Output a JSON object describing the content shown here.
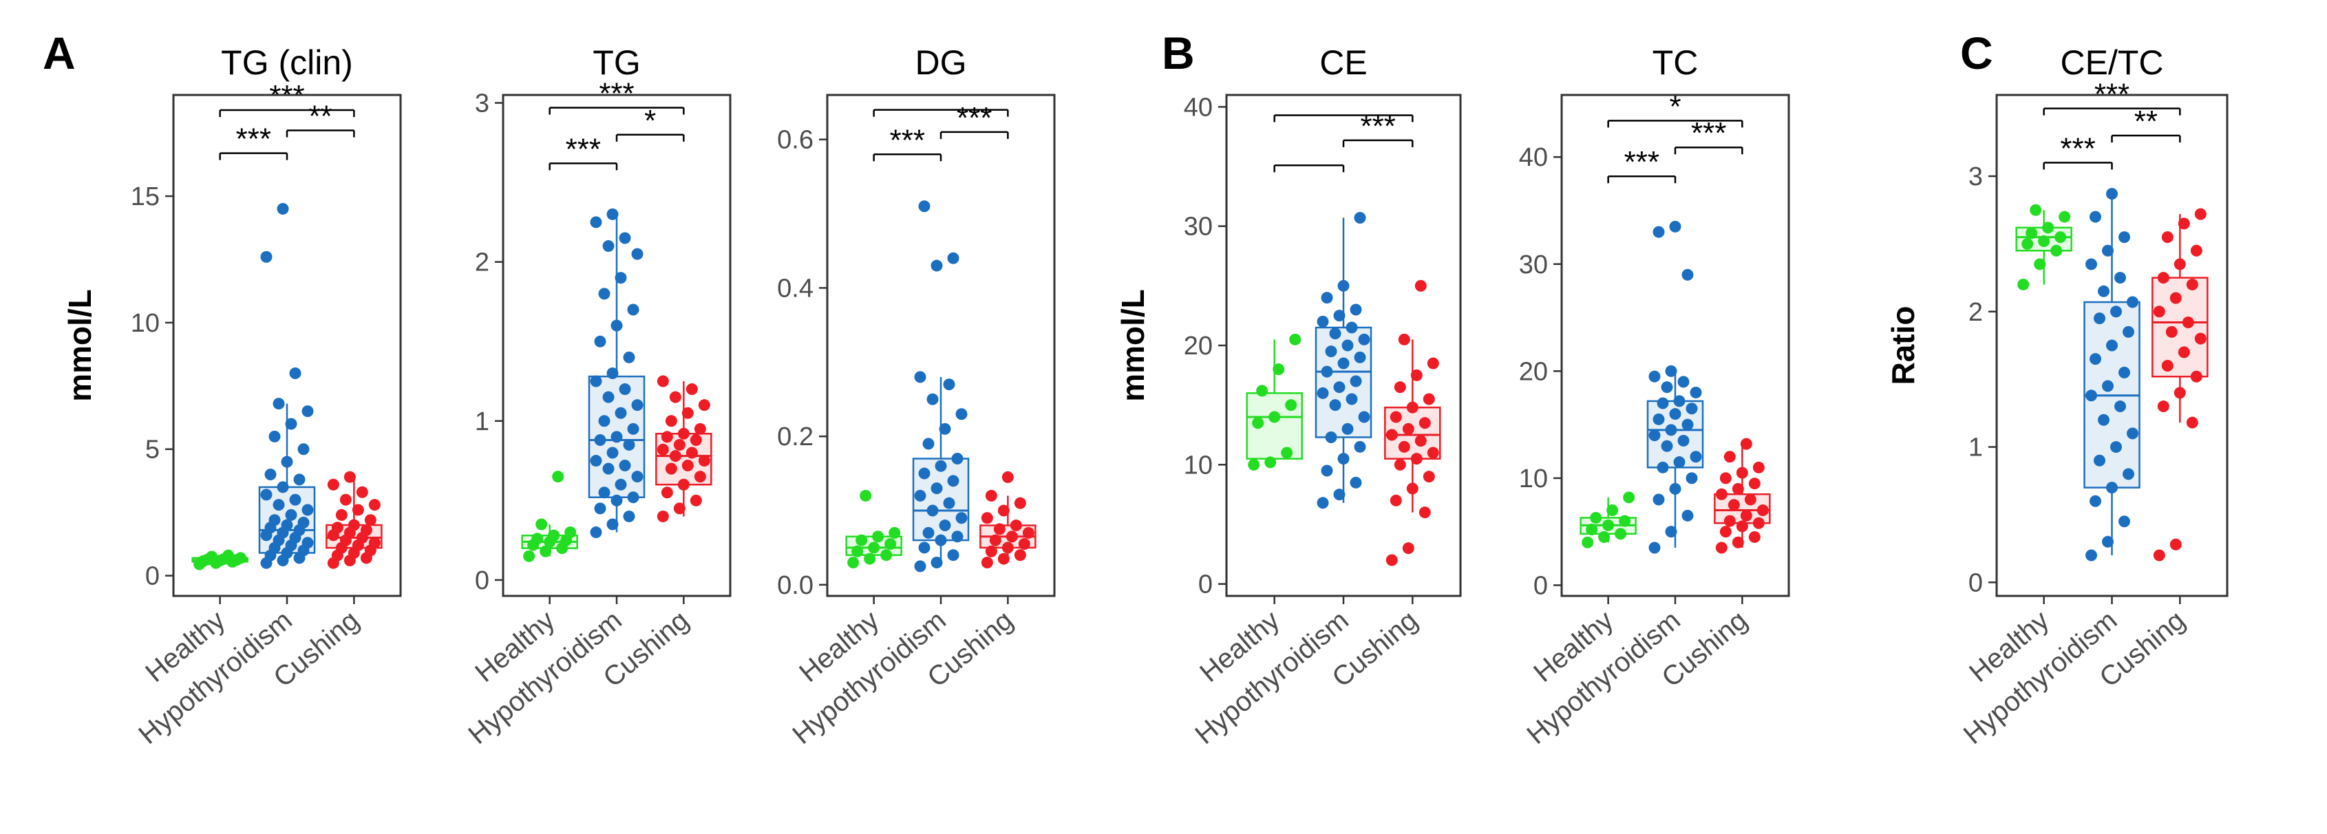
{
  "panel_labels": [
    "A",
    "B",
    "C"
  ],
  "groups": [
    "Healthy",
    "Hypothyroidism",
    "Cushing"
  ],
  "colors": {
    "Healthy": "#22dd22",
    "Hypothyroidism": "#1c6fc0",
    "Cushing": "#ee1c25"
  },
  "chart_data": [
    {
      "type": "box",
      "panel": "A",
      "title": "TG (clin)",
      "ylabel": "mmol/L",
      "ylim": [
        -0.8,
        19
      ],
      "yticks": [
        0,
        5,
        10,
        15
      ],
      "categories": [
        "Healthy",
        "Hypothyroidism",
        "Cushing"
      ],
      "boxes": [
        {
          "group": "Healthy",
          "q1": 0.55,
          "median": 0.62,
          "q3": 0.7,
          "whisker_low": 0.45,
          "whisker_high": 0.8,
          "points": [
            0.45,
            0.5,
            0.55,
            0.58,
            0.6,
            0.62,
            0.64,
            0.66,
            0.7,
            0.75,
            0.8
          ]
        },
        {
          "group": "Hypothyroidism",
          "q1": 0.9,
          "median": 1.8,
          "q3": 3.5,
          "whisker_low": 0.5,
          "whisker_high": 6.8,
          "points": [
            0.5,
            0.6,
            0.7,
            0.8,
            0.9,
            1.0,
            1.1,
            1.2,
            1.3,
            1.4,
            1.5,
            1.6,
            1.7,
            1.8,
            1.9,
            2.0,
            2.1,
            2.2,
            2.4,
            2.6,
            2.8,
            3.0,
            3.2,
            3.5,
            3.8,
            4.0,
            4.5,
            5.0,
            5.5,
            6.0,
            6.5,
            6.8,
            8.0,
            12.6,
            14.5
          ]
        },
        {
          "group": "Cushing",
          "q1": 1.1,
          "median": 1.5,
          "q3": 2.0,
          "whisker_low": 0.5,
          "whisker_high": 3.8,
          "points": [
            0.5,
            0.6,
            0.7,
            0.8,
            0.9,
            1.0,
            1.1,
            1.2,
            1.3,
            1.4,
            1.5,
            1.6,
            1.7,
            1.8,
            1.9,
            2.0,
            2.2,
            2.4,
            2.6,
            2.8,
            3.0,
            3.3,
            3.6,
            3.9
          ]
        }
      ],
      "comparisons": [
        {
          "from": 0,
          "to": 2,
          "value": 18.4,
          "label": "***"
        },
        {
          "from": 0,
          "to": 1,
          "value": 16.7,
          "label": "***"
        },
        {
          "from": 1,
          "to": 2,
          "value": 17.6,
          "label": "**"
        }
      ]
    },
    {
      "type": "box",
      "panel": "A",
      "title": "TG",
      "ylabel": "",
      "ylim": [
        -0.1,
        3.05
      ],
      "yticks": [
        0,
        1,
        2,
        3
      ],
      "categories": [
        "Healthy",
        "Hypothyroidism",
        "Cushing"
      ],
      "boxes": [
        {
          "group": "Healthy",
          "q1": 0.2,
          "median": 0.24,
          "q3": 0.28,
          "whisker_low": 0.15,
          "whisker_high": 0.35,
          "points": [
            0.15,
            0.18,
            0.2,
            0.22,
            0.24,
            0.25,
            0.26,
            0.28,
            0.3,
            0.35,
            0.65
          ]
        },
        {
          "group": "Hypothyroidism",
          "q1": 0.52,
          "median": 0.88,
          "q3": 1.28,
          "whisker_low": 0.3,
          "whisker_high": 2.3,
          "points": [
            0.3,
            0.35,
            0.4,
            0.45,
            0.5,
            0.52,
            0.55,
            0.6,
            0.65,
            0.7,
            0.72,
            0.75,
            0.8,
            0.85,
            0.88,
            0.9,
            0.95,
            1.0,
            1.05,
            1.1,
            1.15,
            1.2,
            1.25,
            1.3,
            1.4,
            1.5,
            1.6,
            1.7,
            1.8,
            1.9,
            2.05,
            2.1,
            2.15,
            2.25,
            2.3
          ]
        },
        {
          "group": "Cushing",
          "q1": 0.6,
          "median": 0.78,
          "q3": 0.92,
          "whisker_low": 0.4,
          "whisker_high": 1.25,
          "points": [
            0.4,
            0.45,
            0.5,
            0.55,
            0.6,
            0.65,
            0.7,
            0.72,
            0.75,
            0.78,
            0.8,
            0.82,
            0.85,
            0.88,
            0.9,
            0.92,
            0.95,
            1.0,
            1.05,
            1.1,
            1.15,
            1.2,
            1.25
          ]
        }
      ],
      "comparisons": [
        {
          "from": 0,
          "to": 2,
          "value": 2.97,
          "label": "***"
        },
        {
          "from": 0,
          "to": 1,
          "value": 2.62,
          "label": "***"
        },
        {
          "from": 1,
          "to": 2,
          "value": 2.8,
          "label": "*"
        }
      ]
    },
    {
      "type": "box",
      "panel": "A",
      "title": "DG",
      "ylabel": "",
      "ylim": [
        -0.015,
        0.66
      ],
      "yticks": [
        0.0,
        0.2,
        0.4,
        0.6
      ],
      "categories": [
        "Healthy",
        "Hypothyroidism",
        "Cushing"
      ],
      "boxes": [
        {
          "group": "Healthy",
          "q1": 0.04,
          "median": 0.05,
          "q3": 0.065,
          "whisker_low": 0.03,
          "whisker_high": 0.07,
          "points": [
            0.03,
            0.035,
            0.04,
            0.045,
            0.05,
            0.055,
            0.06,
            0.065,
            0.07,
            0.12
          ]
        },
        {
          "group": "Hypothyroidism",
          "q1": 0.06,
          "median": 0.1,
          "q3": 0.17,
          "whisker_low": 0.025,
          "whisker_high": 0.28,
          "points": [
            0.025,
            0.03,
            0.04,
            0.05,
            0.06,
            0.065,
            0.07,
            0.08,
            0.09,
            0.1,
            0.11,
            0.12,
            0.13,
            0.14,
            0.15,
            0.16,
            0.17,
            0.19,
            0.21,
            0.23,
            0.25,
            0.27,
            0.28,
            0.43,
            0.44,
            0.51
          ]
        },
        {
          "group": "Cushing",
          "q1": 0.05,
          "median": 0.065,
          "q3": 0.08,
          "whisker_low": 0.03,
          "whisker_high": 0.12,
          "points": [
            0.03,
            0.035,
            0.04,
            0.045,
            0.05,
            0.055,
            0.06,
            0.065,
            0.07,
            0.075,
            0.08,
            0.09,
            0.1,
            0.11,
            0.12,
            0.145
          ]
        }
      ],
      "comparisons": [
        {
          "from": 0,
          "to": 2,
          "value": 0.64,
          "label": ""
        },
        {
          "from": 0,
          "to": 1,
          "value": 0.58,
          "label": "***"
        },
        {
          "from": 1,
          "to": 2,
          "value": 0.61,
          "label": "***"
        }
      ]
    },
    {
      "type": "box",
      "panel": "B",
      "title": "CE",
      "ylabel": "mmol/L",
      "ylim": [
        -1,
        41
      ],
      "yticks": [
        0,
        10,
        20,
        30,
        40
      ],
      "categories": [
        "Healthy",
        "Hypothyroidism",
        "Cushing"
      ],
      "boxes": [
        {
          "group": "Healthy",
          "q1": 10.5,
          "median": 14,
          "q3": 16,
          "whisker_low": 10,
          "whisker_high": 20.5,
          "points": [
            10,
            10.2,
            11,
            13.5,
            14,
            15,
            16.2,
            18,
            20.5
          ]
        },
        {
          "group": "Hypothyroidism",
          "q1": 12.3,
          "median": 17.8,
          "q3": 21.5,
          "whisker_low": 6.8,
          "whisker_high": 30.7,
          "points": [
            6.8,
            7.5,
            8.5,
            9.5,
            10.5,
            11.5,
            12.3,
            13,
            14,
            15,
            15.5,
            16,
            16.5,
            17,
            17.8,
            18.5,
            19,
            19.5,
            20,
            20.5,
            21,
            21.5,
            22,
            22.5,
            23,
            24,
            25,
            30.7
          ]
        },
        {
          "group": "Cushing",
          "q1": 10.5,
          "median": 12.5,
          "q3": 14.8,
          "whisker_low": 6,
          "whisker_high": 20.5,
          "points": [
            2,
            3,
            6,
            7,
            8,
            9,
            10,
            10.5,
            11,
            11.5,
            12,
            12.5,
            13,
            13.5,
            14,
            14.8,
            15.5,
            16.5,
            17.5,
            18.5,
            20.5,
            25
          ]
        }
      ],
      "comparisons": [
        {
          "from": 0,
          "to": 2,
          "value": 39.3,
          "label": ""
        },
        {
          "from": 0,
          "to": 1,
          "value": 35.1,
          "label": ""
        },
        {
          "from": 1,
          "to": 2,
          "value": 37.2,
          "label": "***"
        }
      ]
    },
    {
      "type": "box",
      "panel": "B",
      "title": "TC",
      "ylabel": "",
      "ylim": [
        -1,
        45.8
      ],
      "yticks": [
        0,
        10,
        20,
        30,
        40
      ],
      "categories": [
        "Healthy",
        "Hypothyroidism",
        "Cushing"
      ],
      "boxes": [
        {
          "group": "Healthy",
          "q1": 4.8,
          "median": 5.6,
          "q3": 6.3,
          "whisker_low": 4,
          "whisker_high": 8.2,
          "points": [
            4,
            4.5,
            4.8,
            5.2,
            5.6,
            6,
            6.3,
            7,
            8.2
          ]
        },
        {
          "group": "Hypothyroidism",
          "q1": 11,
          "median": 14.5,
          "q3": 17.2,
          "whisker_low": 3.5,
          "whisker_high": 20,
          "points": [
            3.5,
            5,
            6.5,
            8,
            9,
            10,
            11,
            11.5,
            12,
            13,
            13.5,
            14,
            14.5,
            15,
            15.5,
            16,
            16.5,
            17,
            17.2,
            18,
            18.5,
            19,
            19.5,
            20,
            29,
            33,
            33.5
          ]
        },
        {
          "group": "Cushing",
          "q1": 5.8,
          "median": 7,
          "q3": 8.5,
          "whisker_low": 3.5,
          "whisker_high": 13.2,
          "points": [
            3.5,
            4,
            4.5,
            5,
            5.5,
            5.8,
            6,
            6.5,
            7,
            7.5,
            8,
            8.5,
            9,
            9.5,
            10,
            10.5,
            11,
            12,
            13.2
          ]
        }
      ],
      "comparisons": [
        {
          "from": 0,
          "to": 2,
          "value": 43.4,
          "label": "*"
        },
        {
          "from": 0,
          "to": 1,
          "value": 38.2,
          "label": "***"
        },
        {
          "from": 1,
          "to": 2,
          "value": 40.9,
          "label": "***"
        }
      ]
    },
    {
      "type": "box",
      "panel": "C",
      "title": "CE/TC",
      "ylabel": "Ratio",
      "ylim": [
        -0.1,
        3.6
      ],
      "yticks": [
        0,
        1,
        2,
        3
      ],
      "categories": [
        "Healthy",
        "Hypothyroidism",
        "Cushing"
      ],
      "boxes": [
        {
          "group": "Healthy",
          "q1": 2.45,
          "median": 2.55,
          "q3": 2.62,
          "whisker_low": 2.2,
          "whisker_high": 2.75,
          "points": [
            2.2,
            2.35,
            2.45,
            2.5,
            2.52,
            2.55,
            2.58,
            2.62,
            2.7,
            2.75
          ]
        },
        {
          "group": "Hypothyroidism",
          "q1": 0.7,
          "median": 1.38,
          "q3": 2.07,
          "whisker_low": 0.2,
          "whisker_high": 2.87,
          "points": [
            0.2,
            0.3,
            0.45,
            0.6,
            0.7,
            0.8,
            0.9,
            1.0,
            1.1,
            1.2,
            1.3,
            1.38,
            1.45,
            1.55,
            1.65,
            1.75,
            1.85,
            1.95,
            2.0,
            2.07,
            2.15,
            2.25,
            2.35,
            2.45,
            2.55,
            2.7,
            2.87
          ]
        },
        {
          "group": "Cushing",
          "q1": 1.52,
          "median": 1.92,
          "q3": 2.25,
          "whisker_low": 1.18,
          "whisker_high": 2.72,
          "points": [
            0.2,
            0.28,
            1.18,
            1.3,
            1.4,
            1.52,
            1.6,
            1.7,
            1.8,
            1.85,
            1.92,
            2.0,
            2.1,
            2.2,
            2.25,
            2.35,
            2.45,
            2.55,
            2.65,
            2.72
          ]
        }
      ],
      "comparisons": [
        {
          "from": 0,
          "to": 2,
          "value": 3.5,
          "label": "***"
        },
        {
          "from": 0,
          "to": 1,
          "value": 3.1,
          "label": "***"
        },
        {
          "from": 1,
          "to": 2,
          "value": 3.3,
          "label": "**"
        }
      ]
    }
  ]
}
